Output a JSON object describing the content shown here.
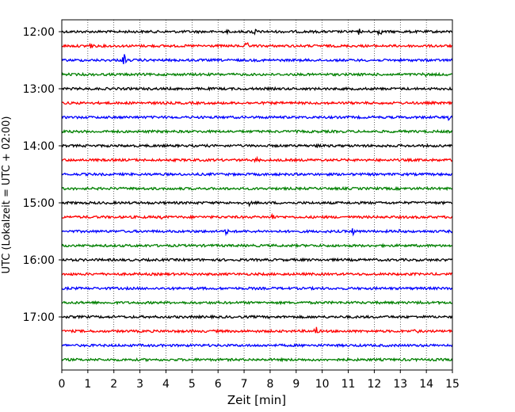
{
  "chart_data": {
    "type": "line",
    "title": "",
    "xlabel": "Zeit  [min]",
    "ylabel": "UTC (Lokalzeit = UTC + 02:00)",
    "xlim": [
      0,
      15
    ],
    "x_ticks": [
      "0",
      "1",
      "2",
      "3",
      "4",
      "5",
      "6",
      "7",
      "8",
      "9",
      "10",
      "11",
      "12",
      "13",
      "14",
      "15"
    ],
    "y_ticks": [
      "12:00",
      "13:00",
      "14:00",
      "15:00",
      "16:00",
      "17:00"
    ],
    "grid": "vertical dotted",
    "legend": "none",
    "trace_interval_min": 15,
    "series": [
      {
        "start": "12:00",
        "color": "#000000",
        "spikes": [
          {
            "x": 6.4,
            "a": 4
          },
          {
            "x": 7.4,
            "a": 4
          },
          {
            "x": 11.4,
            "a": 4
          },
          {
            "x": 12.2,
            "a": 4
          }
        ]
      },
      {
        "start": "12:15",
        "color": "#ff0000",
        "spikes": [
          {
            "x": 1.1,
            "a": 4
          },
          {
            "x": 7.1,
            "a": 4
          }
        ]
      },
      {
        "start": "12:30",
        "color": "#0000ff",
        "spikes": [
          {
            "x": 2.4,
            "a": 8
          }
        ]
      },
      {
        "start": "12:45",
        "color": "#008000",
        "spikes": [
          {
            "x": 13.9,
            "a": 4
          }
        ]
      },
      {
        "start": "13:00",
        "color": "#000000",
        "spikes": []
      },
      {
        "start": "13:15",
        "color": "#ff0000",
        "spikes": []
      },
      {
        "start": "13:30",
        "color": "#0000ff",
        "spikes": [
          {
            "x": 14.9,
            "a": 4
          }
        ]
      },
      {
        "start": "13:45",
        "color": "#008000",
        "spikes": []
      },
      {
        "start": "14:00",
        "color": "#000000",
        "spikes": [
          {
            "x": 9.8,
            "a": 3
          }
        ]
      },
      {
        "start": "14:15",
        "color": "#ff0000",
        "spikes": [
          {
            "x": 7.5,
            "a": 3
          }
        ]
      },
      {
        "start": "14:30",
        "color": "#0000ff",
        "spikes": []
      },
      {
        "start": "14:45",
        "color": "#008000",
        "spikes": []
      },
      {
        "start": "15:00",
        "color": "#000000",
        "spikes": [
          {
            "x": 7.2,
            "a": 3
          }
        ]
      },
      {
        "start": "15:15",
        "color": "#ff0000",
        "spikes": [
          {
            "x": 3.8,
            "a": 3
          },
          {
            "x": 8.1,
            "a": 4
          }
        ]
      },
      {
        "start": "15:30",
        "color": "#0000ff",
        "spikes": [
          {
            "x": 6.3,
            "a": 4
          },
          {
            "x": 11.2,
            "a": 6
          },
          {
            "x": 13.0,
            "a": 3
          }
        ]
      },
      {
        "start": "15:45",
        "color": "#008000",
        "spikes": []
      },
      {
        "start": "16:00",
        "color": "#000000",
        "spikes": []
      },
      {
        "start": "16:15",
        "color": "#ff0000",
        "spikes": []
      },
      {
        "start": "16:30",
        "color": "#0000ff",
        "spikes": []
      },
      {
        "start": "16:45",
        "color": "#008000",
        "spikes": [
          {
            "x": 13.8,
            "a": 3
          }
        ]
      },
      {
        "start": "17:00",
        "color": "#000000",
        "spikes": []
      },
      {
        "start": "17:15",
        "color": "#ff0000",
        "spikes": [
          {
            "x": 9.75,
            "a": 7
          },
          {
            "x": 13.6,
            "a": 4
          }
        ]
      },
      {
        "start": "17:30",
        "color": "#0000ff",
        "spikes": []
      },
      {
        "start": "17:45",
        "color": "#008000",
        "spikes": []
      }
    ]
  }
}
